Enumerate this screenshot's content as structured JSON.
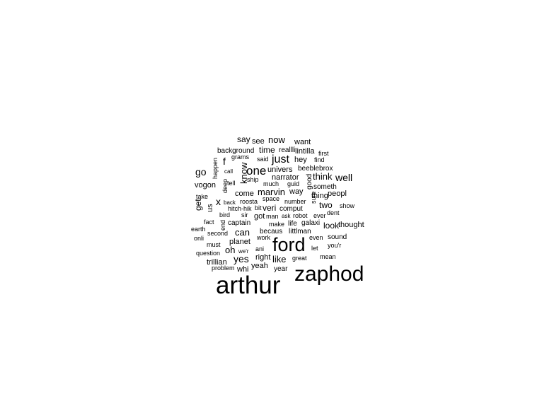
{
  "chart_data": {
    "type": "wordcloud",
    "title": "",
    "color": "#000000",
    "words": [
      {
        "text": "arthur",
        "weight": 100
      },
      {
        "text": "zaphod",
        "weight": 88
      },
      {
        "text": "ford",
        "weight": 80
      },
      {
        "text": "one",
        "weight": 48
      },
      {
        "text": "just",
        "weight": 45
      },
      {
        "text": "well",
        "weight": 43
      },
      {
        "text": "go",
        "weight": 42
      },
      {
        "text": "f",
        "weight": 41
      },
      {
        "text": "x",
        "weight": 40
      },
      {
        "text": "yes",
        "weight": 40
      },
      {
        "text": "think",
        "weight": 38
      },
      {
        "text": "marvin",
        "weight": 37
      },
      {
        "text": "know",
        "weight": 37
      },
      {
        "text": "like",
        "weight": 37
      },
      {
        "text": "can",
        "weight": 36
      },
      {
        "text": "now",
        "weight": 36
      },
      {
        "text": "oh",
        "weight": 36
      },
      {
        "text": "get",
        "weight": 35
      },
      {
        "text": "two",
        "weight": 35
      },
      {
        "text": "look",
        "weight": 35
      },
      {
        "text": "say",
        "weight": 34
      },
      {
        "text": "time",
        "weight": 34
      },
      {
        "text": "trillian",
        "weight": 34
      },
      {
        "text": "right",
        "weight": 34
      },
      {
        "text": "thought",
        "weight": 34
      },
      {
        "text": "veri",
        "weight": 34
      },
      {
        "text": "lintilla",
        "weight": 33
      },
      {
        "text": "narrator",
        "weight": 33
      },
      {
        "text": "come",
        "weight": 33
      },
      {
        "text": "planet",
        "weight": 33
      },
      {
        "text": "yeah",
        "weight": 33
      },
      {
        "text": "see",
        "weight": 32
      },
      {
        "text": "want",
        "weight": 32
      },
      {
        "text": "vogon",
        "weight": 32
      },
      {
        "text": "peopl",
        "weight": 32
      },
      {
        "text": "got",
        "weight": 32
      },
      {
        "text": "whi",
        "weight": 32
      },
      {
        "text": "thing",
        "weight": 31
      },
      {
        "text": "us",
        "weight": 31
      },
      {
        "text": "hey",
        "weight": 31
      },
      {
        "text": "way",
        "weight": 31
      },
      {
        "text": "univers",
        "weight": 31
      },
      {
        "text": "becaus",
        "weight": 30
      },
      {
        "text": "littlman",
        "weight": 30
      },
      {
        "text": "sound",
        "weight": 30
      },
      {
        "text": "year",
        "weight": 30
      },
      {
        "text": "good",
        "weight": 30
      },
      {
        "text": "background",
        "weight": 29
      },
      {
        "text": "reallli",
        "weight": 29
      },
      {
        "text": "beeblebrox",
        "weight": 29
      },
      {
        "text": "someth",
        "weight": 29
      },
      {
        "text": "captain",
        "weight": 29
      },
      {
        "text": "comput",
        "weight": 29
      },
      {
        "text": "galaxi",
        "weight": 29
      },
      {
        "text": "life",
        "weight": 29
      },
      {
        "text": "make",
        "weight": 29
      },
      {
        "text": "find",
        "weight": 29
      },
      {
        "text": "ani",
        "weight": 29
      },
      {
        "text": "great",
        "weight": 29
      },
      {
        "text": "bird",
        "weight": 28
      },
      {
        "text": "earth",
        "weight": 28
      },
      {
        "text": "fact",
        "weight": 28
      },
      {
        "text": "onli",
        "weight": 28
      },
      {
        "text": "must",
        "weight": 28
      },
      {
        "text": "question",
        "weight": 28
      },
      {
        "text": "first",
        "weight": 28
      },
      {
        "text": "tell",
        "weight": 28
      },
      {
        "text": "take",
        "weight": 28
      },
      {
        "text": "number",
        "weight": 28
      },
      {
        "text": "ship",
        "weight": 28
      },
      {
        "text": "much",
        "weight": 28
      },
      {
        "text": "guid",
        "weight": 28
      },
      {
        "text": "space",
        "weight": 28
      },
      {
        "text": "ever",
        "weight": 28
      },
      {
        "text": "dent",
        "weight": 28
      },
      {
        "text": "show",
        "weight": 28
      },
      {
        "text": "let",
        "weight": 28
      },
      {
        "text": "mean",
        "weight": 28
      },
      {
        "text": "even",
        "weight": 28
      },
      {
        "text": "you'r",
        "weight": 28
      },
      {
        "text": "call",
        "weight": 27
      },
      {
        "text": "grams",
        "weight": 27
      },
      {
        "text": "said",
        "weight": 27
      },
      {
        "text": "happen",
        "weight": 27
      },
      {
        "text": "deep",
        "weight": 27
      },
      {
        "text": "end",
        "weight": 27
      },
      {
        "text": "second",
        "weight": 27
      },
      {
        "text": "roosta",
        "weight": 27
      },
      {
        "text": "back",
        "weight": 27
      },
      {
        "text": "hitch-hik",
        "weight": 27
      },
      {
        "text": "bit",
        "weight": 27
      },
      {
        "text": "sir",
        "weight": 27
      },
      {
        "text": "man",
        "weight": 27
      },
      {
        "text": "ask",
        "weight": 27
      },
      {
        "text": "robot",
        "weight": 27
      },
      {
        "text": "work",
        "weight": 27
      },
      {
        "text": "we'r",
        "weight": 27
      },
      {
        "text": "problem",
        "weight": 27
      },
      {
        "text": "sure",
        "weight": 27
      }
    ]
  }
}
